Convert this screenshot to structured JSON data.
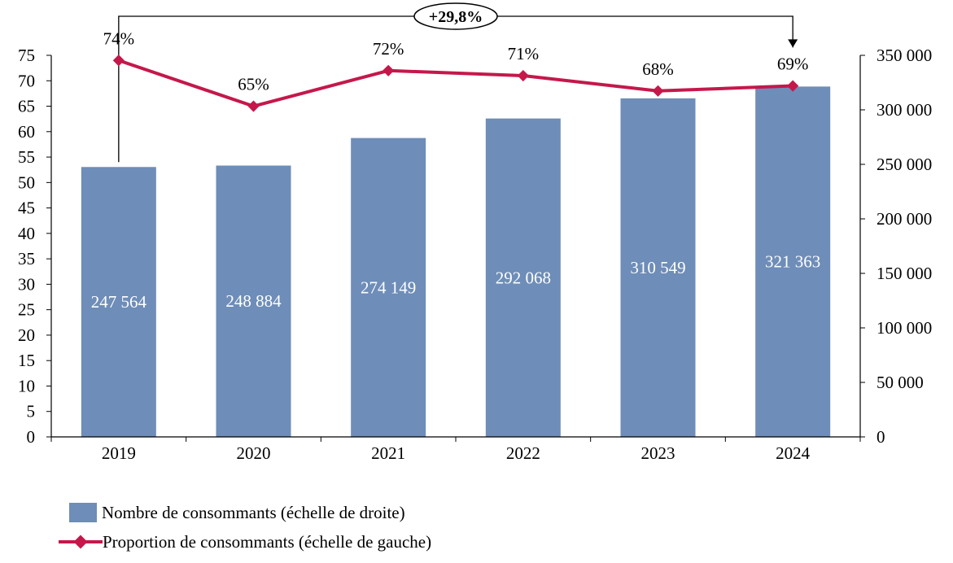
{
  "chart_data": {
    "type": "bar",
    "categories": [
      "2019",
      "2020",
      "2021",
      "2022",
      "2023",
      "2024"
    ],
    "series": [
      {
        "name": "Nombre de consommants (échelle de droite)",
        "type": "bar",
        "axis": "right",
        "values": [
          247564,
          248884,
          274149,
          292068,
          310549,
          321363
        ],
        "labels": [
          "247 564",
          "248 884",
          "274 149",
          "292 068",
          "310 549",
          "321 363"
        ]
      },
      {
        "name": "Proportion de consommants (échelle de gauche)",
        "type": "line",
        "axis": "left",
        "values": [
          74,
          65,
          72,
          71,
          68,
          69
        ],
        "labels": [
          "74%",
          "65%",
          "72%",
          "71%",
          "68%",
          "69%"
        ]
      }
    ],
    "left_axis": {
      "ylim": [
        0,
        75
      ],
      "ticks": [
        "0",
        "5",
        "10",
        "15",
        "20",
        "25",
        "30",
        "35",
        "40",
        "45",
        "50",
        "55",
        "60",
        "65",
        "70",
        "75"
      ]
    },
    "right_axis": {
      "ylim": [
        0,
        350000
      ],
      "ticks": [
        "0",
        "50 000",
        "100 000",
        "150 000",
        "200 000",
        "250 000",
        "300 000",
        "350 000"
      ]
    },
    "annotation": {
      "text": "+29,8%",
      "from": "2019",
      "to": "2024"
    },
    "legend_position": "bottom-left",
    "grid": false,
    "colors": {
      "bar": "#6E8DB8",
      "line": "#C4184B",
      "axis": "#000000"
    }
  }
}
